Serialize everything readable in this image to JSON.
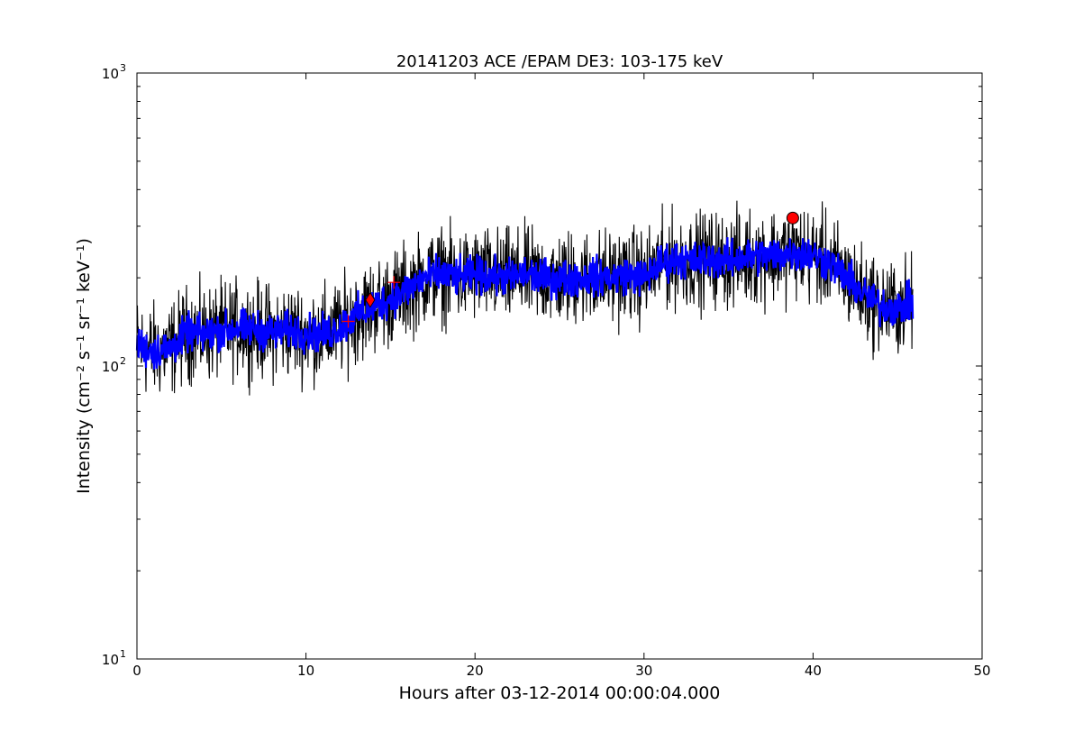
{
  "chart_data": {
    "type": "line",
    "title": "20141203 ACE /EPAM DE3: 103-175 keV",
    "xlabel": "Hours after 03-12-2014 00:00:04.000",
    "ylabel": "Intensity (cm⁻² s⁻¹ sr⁻¹ keV⁻¹)",
    "xlim": [
      0,
      50
    ],
    "ylim": [
      10,
      1000
    ],
    "yscale": "log",
    "grid": false,
    "xticks": [
      "0",
      "10",
      "20",
      "30",
      "40",
      "50"
    ],
    "yticks": [
      {
        "value": 10,
        "base": "10",
        "exp": "1"
      },
      {
        "value": 100,
        "base": "10",
        "exp": "2"
      },
      {
        "value": 1000,
        "base": "10",
        "exp": "3"
      }
    ],
    "series": [
      {
        "style": "raw",
        "color": "#000000",
        "x": [
          0,
          1,
          2,
          3,
          4,
          5,
          6,
          7,
          8,
          9,
          10,
          11,
          12,
          13,
          14,
          15,
          16,
          17,
          18,
          19,
          20,
          21,
          22,
          23,
          24,
          25,
          26,
          27,
          28,
          29,
          30,
          31,
          32,
          33,
          34,
          35,
          36,
          37,
          38,
          39,
          40,
          41,
          42,
          43,
          44,
          45,
          45.9
        ],
        "y": [
          118,
          112,
          115,
          130,
          128,
          132,
          135,
          133,
          130,
          132,
          130,
          128,
          135,
          150,
          160,
          170,
          182,
          200,
          205,
          200,
          205,
          202,
          200,
          205,
          200,
          198,
          200,
          202,
          200,
          205,
          200,
          225,
          232,
          228,
          232,
          230,
          235,
          238,
          240,
          245,
          238,
          225,
          200,
          175,
          160,
          158,
          165
        ],
        "spread": 0.55
      },
      {
        "style": "smoothed",
        "color": "#0000ff",
        "x": [
          0,
          1,
          2,
          3,
          4,
          5,
          6,
          7,
          8,
          9,
          10,
          11,
          12,
          13,
          14,
          15,
          16,
          17,
          18,
          19,
          20,
          21,
          22,
          23,
          24,
          25,
          26,
          27,
          28,
          29,
          30,
          31,
          32,
          33,
          34,
          35,
          36,
          37,
          38,
          39,
          40,
          41,
          42,
          43,
          44,
          45,
          45.9
        ],
        "y": [
          118,
          112,
          115,
          130,
          128,
          132,
          135,
          133,
          130,
          132,
          130,
          128,
          135,
          150,
          160,
          170,
          182,
          200,
          205,
          200,
          205,
          202,
          200,
          205,
          200,
          198,
          200,
          202,
          200,
          205,
          200,
          225,
          232,
          228,
          232,
          230,
          235,
          238,
          240,
          245,
          238,
          225,
          200,
          175,
          160,
          158,
          165
        ],
        "spread": 0.22
      }
    ],
    "markers": [
      {
        "type": "plus",
        "x": 12.5,
        "y": 142,
        "color": "#ff0000"
      },
      {
        "type": "plus",
        "x": 15.2,
        "y": 193,
        "color": "#ff0000"
      },
      {
        "type": "diamond",
        "x": 13.8,
        "y": 168,
        "color": "#ff0000"
      },
      {
        "type": "circle",
        "x": 38.8,
        "y": 320,
        "color": "#ff0000"
      }
    ]
  }
}
